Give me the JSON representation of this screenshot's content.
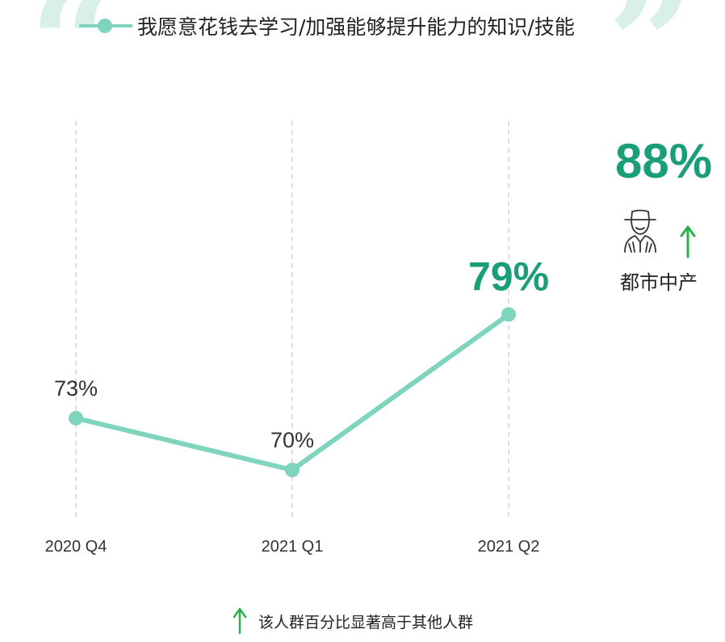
{
  "legend": {
    "label": "我愿意花钱去学习/加强能够提升能力的知识/技能"
  },
  "chart_data": {
    "type": "line",
    "categories": [
      "2020 Q4",
      "2021 Q1",
      "2021 Q2"
    ],
    "values": [
      73,
      70,
      79
    ],
    "labels": [
      "73%",
      "70%",
      "79%"
    ],
    "highlight_index": 2,
    "ylim": [
      60,
      85
    ],
    "grid": "vertical-dashed"
  },
  "side": {
    "value_label": "88%",
    "segment": "都市中产",
    "icon": "person-hat-icon",
    "indicator": "up-arrow-icon"
  },
  "footnote": {
    "text": "该人群百分比显著高于其他人群"
  },
  "colors": {
    "line": "#7fd4bd",
    "highlight": "#1a9e78",
    "arrow": "#2ab24a",
    "quote": "#d8f0e8"
  }
}
